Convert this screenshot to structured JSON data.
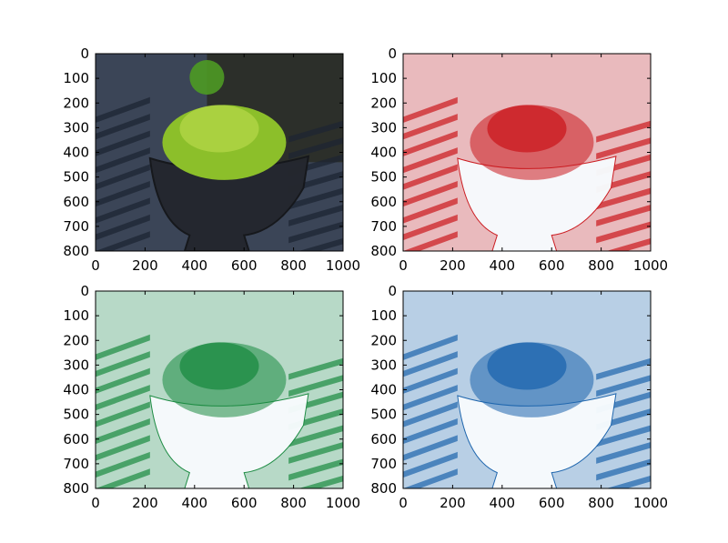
{
  "chart_data": [
    {
      "type": "image",
      "content": "full-color photograph of a mound of green moss in a dark round bowl, bright sunlight, slatted shadows on the floor",
      "colormap": "rgb",
      "tint": "#6aa83a",
      "xlim": [
        0,
        1000
      ],
      "ylim": [
        800,
        0
      ],
      "xticks": [
        0,
        200,
        400,
        600,
        800,
        1000
      ],
      "yticks": [
        0,
        100,
        200,
        300,
        400,
        500,
        600,
        700,
        800
      ],
      "xlabel": "",
      "ylabel": "",
      "title": ""
    },
    {
      "type": "image",
      "content": "red channel of the same photograph rendered with a reversed red colormap",
      "colormap": "Reds",
      "tint": "#cb181d",
      "xlim": [
        0,
        1000
      ],
      "ylim": [
        800,
        0
      ],
      "xticks": [
        0,
        200,
        400,
        600,
        800,
        1000
      ],
      "yticks": [
        0,
        100,
        200,
        300,
        400,
        500,
        600,
        700,
        800
      ],
      "xlabel": "",
      "ylabel": "",
      "title": ""
    },
    {
      "type": "image",
      "content": "green channel of the same photograph rendered with a reversed green colormap",
      "colormap": "Greens",
      "tint": "#1a8a40",
      "xlim": [
        0,
        1000
      ],
      "ylim": [
        800,
        0
      ],
      "xticks": [
        0,
        200,
        400,
        600,
        800,
        1000
      ],
      "yticks": [
        0,
        100,
        200,
        300,
        400,
        500,
        600,
        700,
        800
      ],
      "xlabel": "",
      "ylabel": "",
      "title": ""
    },
    {
      "type": "image",
      "content": "blue channel of the same photograph rendered with a reversed blue colormap",
      "colormap": "Blues",
      "tint": "#1c64ad",
      "xlim": [
        0,
        1000
      ],
      "ylim": [
        800,
        0
      ],
      "xticks": [
        0,
        200,
        400,
        600,
        800,
        1000
      ],
      "yticks": [
        0,
        100,
        200,
        300,
        400,
        500,
        600,
        700,
        800
      ],
      "xlabel": "",
      "ylabel": "",
      "title": ""
    }
  ]
}
